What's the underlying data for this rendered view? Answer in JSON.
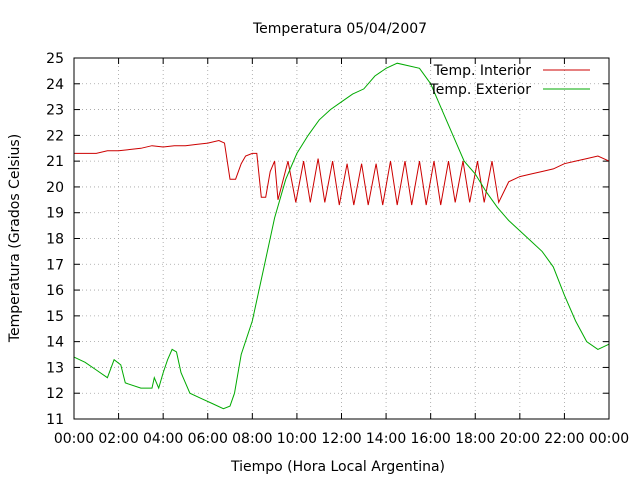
{
  "chart_data": {
    "type": "line",
    "title": "Temperatura 05/04/2007",
    "xlabel": "Tiempo (Hora Local Argentina)",
    "ylabel": "Temperatura (Grados Celsius)",
    "xlim": [
      0,
      24
    ],
    "ylim": [
      11,
      25
    ],
    "grid": true,
    "legend_position": "top-right",
    "x_tick_labels": [
      "00:00",
      "02:00",
      "04:00",
      "06:00",
      "08:00",
      "10:00",
      "12:00",
      "14:00",
      "16:00",
      "18:00",
      "20:00",
      "22:00",
      "00:00"
    ],
    "y_tick_labels": [
      "11",
      "12",
      "13",
      "14",
      "15",
      "16",
      "17",
      "18",
      "19",
      "20",
      "21",
      "22",
      "23",
      "24",
      "25"
    ],
    "series": [
      {
        "name": "Temp. Interior",
        "color": "#cc0000",
        "points": [
          [
            0.0,
            21.3
          ],
          [
            1.0,
            21.3
          ],
          [
            1.5,
            21.4
          ],
          [
            2.0,
            21.4
          ],
          [
            2.5,
            21.45
          ],
          [
            3.0,
            21.5
          ],
          [
            3.5,
            21.6
          ],
          [
            4.0,
            21.55
          ],
          [
            4.5,
            21.6
          ],
          [
            5.0,
            21.6
          ],
          [
            5.5,
            21.65
          ],
          [
            6.0,
            21.7
          ],
          [
            6.5,
            21.8
          ],
          [
            6.75,
            21.7
          ],
          [
            7.0,
            20.3
          ],
          [
            7.25,
            20.3
          ],
          [
            7.5,
            20.9
          ],
          [
            7.7,
            21.2
          ],
          [
            8.0,
            21.3
          ],
          [
            8.2,
            21.3
          ],
          [
            8.4,
            19.6
          ],
          [
            8.6,
            19.6
          ],
          [
            8.8,
            20.6
          ],
          [
            9.0,
            21.0
          ],
          [
            9.15,
            19.5
          ],
          [
            9.6,
            21.0
          ],
          [
            9.95,
            19.4
          ],
          [
            10.3,
            21.0
          ],
          [
            10.6,
            19.4
          ],
          [
            10.95,
            21.1
          ],
          [
            11.25,
            19.4
          ],
          [
            11.6,
            21.0
          ],
          [
            11.9,
            19.3
          ],
          [
            12.25,
            20.9
          ],
          [
            12.55,
            19.3
          ],
          [
            12.9,
            20.9
          ],
          [
            13.2,
            19.3
          ],
          [
            13.55,
            20.9
          ],
          [
            13.85,
            19.3
          ],
          [
            14.2,
            21.0
          ],
          [
            14.5,
            19.3
          ],
          [
            14.85,
            21.0
          ],
          [
            15.15,
            19.3
          ],
          [
            15.5,
            21.0
          ],
          [
            15.8,
            19.3
          ],
          [
            16.15,
            21.0
          ],
          [
            16.45,
            19.3
          ],
          [
            16.8,
            21.0
          ],
          [
            17.1,
            19.4
          ],
          [
            17.45,
            21.0
          ],
          [
            17.75,
            19.4
          ],
          [
            18.1,
            21.0
          ],
          [
            18.4,
            19.4
          ],
          [
            18.75,
            21.0
          ],
          [
            19.05,
            19.4
          ],
          [
            19.5,
            20.2
          ],
          [
            20.0,
            20.4
          ],
          [
            20.5,
            20.5
          ],
          [
            21.0,
            20.6
          ],
          [
            21.5,
            20.7
          ],
          [
            22.0,
            20.9
          ],
          [
            22.5,
            21.0
          ],
          [
            23.0,
            21.1
          ],
          [
            23.5,
            21.2
          ],
          [
            24.0,
            21.0
          ]
        ]
      },
      {
        "name": "Temp. Exterior",
        "color": "#00aa00",
        "points": [
          [
            0.0,
            13.4
          ],
          [
            0.5,
            13.2
          ],
          [
            1.0,
            12.9
          ],
          [
            1.5,
            12.6
          ],
          [
            1.8,
            13.3
          ],
          [
            2.1,
            13.1
          ],
          [
            2.3,
            12.4
          ],
          [
            3.0,
            12.2
          ],
          [
            3.5,
            12.2
          ],
          [
            3.6,
            12.6
          ],
          [
            3.8,
            12.2
          ],
          [
            4.0,
            12.8
          ],
          [
            4.2,
            13.3
          ],
          [
            4.4,
            13.7
          ],
          [
            4.6,
            13.6
          ],
          [
            4.8,
            12.8
          ],
          [
            5.2,
            12.0
          ],
          [
            5.7,
            11.8
          ],
          [
            6.2,
            11.6
          ],
          [
            6.7,
            11.4
          ],
          [
            7.0,
            11.5
          ],
          [
            7.2,
            12.0
          ],
          [
            7.5,
            13.5
          ],
          [
            8.0,
            14.8
          ],
          [
            8.5,
            16.8
          ],
          [
            9.0,
            18.8
          ],
          [
            9.5,
            20.3
          ],
          [
            10.0,
            21.3
          ],
          [
            10.5,
            22.0
          ],
          [
            11.0,
            22.6
          ],
          [
            11.5,
            23.0
          ],
          [
            12.0,
            23.3
          ],
          [
            12.5,
            23.6
          ],
          [
            13.0,
            23.8
          ],
          [
            13.5,
            24.3
          ],
          [
            14.0,
            24.6
          ],
          [
            14.5,
            24.8
          ],
          [
            15.0,
            24.7
          ],
          [
            15.5,
            24.6
          ],
          [
            16.0,
            24.0
          ],
          [
            16.5,
            23.0
          ],
          [
            17.0,
            22.0
          ],
          [
            17.5,
            21.0
          ],
          [
            18.0,
            20.5
          ],
          [
            18.5,
            19.8
          ],
          [
            19.0,
            19.2
          ],
          [
            19.5,
            18.7
          ],
          [
            20.0,
            18.3
          ],
          [
            20.5,
            17.9
          ],
          [
            21.0,
            17.5
          ],
          [
            21.5,
            16.9
          ],
          [
            22.0,
            15.8
          ],
          [
            22.5,
            14.8
          ],
          [
            23.0,
            14.0
          ],
          [
            23.5,
            13.7
          ],
          [
            24.0,
            13.9
          ]
        ]
      }
    ]
  }
}
